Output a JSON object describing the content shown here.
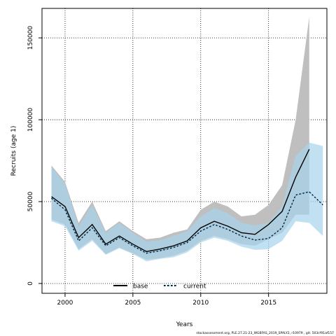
{
  "chart_data": {
    "type": "area",
    "xlabel": "Years",
    "ylabel": "Recruits (age 1)",
    "xlim": [
      1998.3,
      2019.3
    ],
    "ylim": [
      -6000,
      168000
    ],
    "x_ticks": [
      2000,
      2005,
      2010,
      2015
    ],
    "x_tick_labels": [
      "2000",
      "2005",
      "2010",
      "2015"
    ],
    "y_ticks": [
      0,
      50000,
      100000,
      150000
    ],
    "y_tick_labels": [
      "0",
      "50000",
      "100000",
      "150000"
    ],
    "grid": true,
    "legend": {
      "placement": "bottom-center"
    },
    "colors": {
      "base_band": "#bfbfbf",
      "current_band": "#a6d4ec",
      "current_band_solo": "#bde3f4",
      "overlap_band": "#9cbfcf",
      "base_line": "#000000",
      "current_line": "#000000",
      "current_line_dash": "#1f78b4"
    },
    "x": [
      1999,
      2000,
      2001,
      2002,
      2003,
      2004,
      2005,
      2006,
      2007,
      2008,
      2009,
      2010,
      2011,
      2012,
      2013,
      2014,
      2015,
      2016,
      2017,
      2018,
      2019
    ],
    "series": [
      {
        "name": "base",
        "line_style": "solid",
        "values": [
          53000,
          47000,
          28000,
          36000,
          24000,
          29000,
          24000,
          19500,
          21000,
          23000,
          26000,
          34000,
          38000,
          35000,
          31000,
          30000,
          36000,
          44000,
          65000,
          82000,
          null
        ],
        "lower": [
          39000,
          36000,
          21000,
          27000,
          18000,
          22000,
          18500,
          14500,
          15500,
          17000,
          20000,
          26000,
          29000,
          27000,
          24000,
          23000,
          27000,
          31000,
          42000,
          42000,
          null
        ],
        "upper": [
          72000,
          62000,
          37000,
          50000,
          32000,
          38000,
          32000,
          27000,
          28000,
          31000,
          33000,
          45000,
          50000,
          47000,
          41000,
          42000,
          48000,
          60000,
          100000,
          163000,
          null
        ]
      },
      {
        "name": "current",
        "line_style": "dotted",
        "values": [
          52000,
          45000,
          26000,
          34000,
          23000,
          28000,
          23000,
          18500,
          20000,
          22000,
          25000,
          32000,
          36000,
          33000,
          29000,
          26500,
          27500,
          34000,
          54000,
          56000,
          48000
        ],
        "lower": [
          38000,
          35000,
          20000,
          26000,
          17500,
          21500,
          18000,
          13500,
          15000,
          16000,
          19000,
          25000,
          28000,
          26000,
          22500,
          20500,
          21000,
          26000,
          38000,
          37000,
          29000
        ],
        "upper": [
          71000,
          61000,
          35000,
          48000,
          31000,
          37000,
          31000,
          25500,
          26500,
          29000,
          32000,
          41000,
          46000,
          43000,
          37000,
          35500,
          37000,
          47000,
          78000,
          86000,
          84000
        ]
      }
    ]
  },
  "footer": "stockassessment.org, PLE.27.21-23_WGBFAS_2019_SPALY2, r10979 , git: 503cf91af157"
}
